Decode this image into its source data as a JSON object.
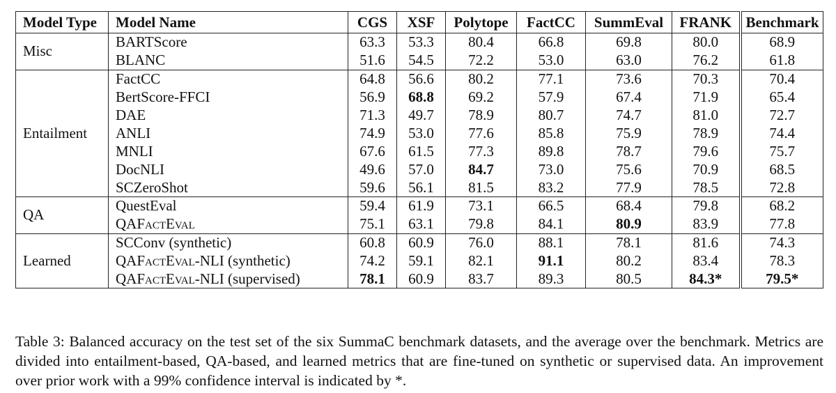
{
  "table": {
    "headers": [
      "Model Type",
      "Model Name",
      "CGS",
      "XSF",
      "Polytope",
      "FactCC",
      "SummEval",
      "FRANK",
      "Benchmark"
    ],
    "groups": [
      {
        "type": "Misc",
        "rows": [
          {
            "name": "BARTScore",
            "values": [
              "63.3",
              "53.3",
              "80.4",
              "66.8",
              "69.8",
              "80.0",
              "68.9"
            ],
            "bold": []
          },
          {
            "name": "BLANC",
            "values": [
              "51.6",
              "54.5",
              "72.2",
              "53.0",
              "63.0",
              "76.2",
              "61.8"
            ],
            "bold": []
          }
        ]
      },
      {
        "type": "Entailment",
        "rows": [
          {
            "name": "FactCC",
            "values": [
              "64.8",
              "56.6",
              "80.2",
              "77.1",
              "73.6",
              "70.3",
              "70.4"
            ],
            "bold": []
          },
          {
            "name": "BertScore-FFCI",
            "values": [
              "56.9",
              "68.8",
              "69.2",
              "57.9",
              "67.4",
              "71.9",
              "65.4"
            ],
            "bold": [
              1
            ]
          },
          {
            "name": "DAE",
            "values": [
              "71.3",
              "49.7",
              "78.9",
              "80.7",
              "74.7",
              "81.0",
              "72.7"
            ],
            "bold": []
          },
          {
            "name": "ANLI",
            "values": [
              "74.9",
              "53.0",
              "77.6",
              "85.8",
              "75.9",
              "78.9",
              "74.4"
            ],
            "bold": []
          },
          {
            "name": "MNLI",
            "values": [
              "67.6",
              "61.5",
              "77.3",
              "89.8",
              "78.7",
              "79.6",
              "75.7"
            ],
            "bold": []
          },
          {
            "name": "DocNLI",
            "values": [
              "49.6",
              "57.0",
              "84.7",
              "73.0",
              "75.6",
              "70.9",
              "68.5"
            ],
            "bold": [
              2
            ]
          },
          {
            "name": "SCZeroShot",
            "values": [
              "59.6",
              "56.1",
              "81.5",
              "83.2",
              "77.9",
              "78.5",
              "72.8"
            ],
            "bold": []
          }
        ]
      },
      {
        "type": "QA",
        "rows": [
          {
            "name": "QuestEval",
            "values": [
              "59.4",
              "61.9",
              "73.1",
              "66.5",
              "68.4",
              "79.8",
              "68.2"
            ],
            "bold": []
          },
          {
            "name": "QAFACTEVAL",
            "values": [
              "75.1",
              "63.1",
              "79.8",
              "84.1",
              "80.9",
              "83.9",
              "77.8"
            ],
            "bold": [
              4
            ]
          }
        ]
      },
      {
        "type": "Learned",
        "rows": [
          {
            "name": "SCConv (synthetic)",
            "values": [
              "60.8",
              "60.9",
              "76.0",
              "88.1",
              "78.1",
              "81.6",
              "74.3"
            ],
            "bold": []
          },
          {
            "name": "QAFACTEVAL-NLI (synthetic)",
            "values": [
              "74.2",
              "59.1",
              "82.1",
              "91.1",
              "80.2",
              "83.4",
              "78.3"
            ],
            "bold": [
              3
            ]
          },
          {
            "name": "QAFACTEVAL-NLI (supervised)",
            "values": [
              "78.1",
              "60.9",
              "83.7",
              "89.3",
              "80.5",
              "84.3*",
              "79.5*"
            ],
            "bold": [
              0,
              5,
              6
            ]
          }
        ]
      }
    ]
  },
  "caption": "Table 3: Balanced accuracy on the test set of the six SummaC benchmark datasets, and the average over the benchmark. Metrics are divided into entailment-based, QA-based, and learned metrics that are fine-tuned on synthetic or supervised data. An improvement over prior work with a 99% confidence interval is indicated by *."
}
